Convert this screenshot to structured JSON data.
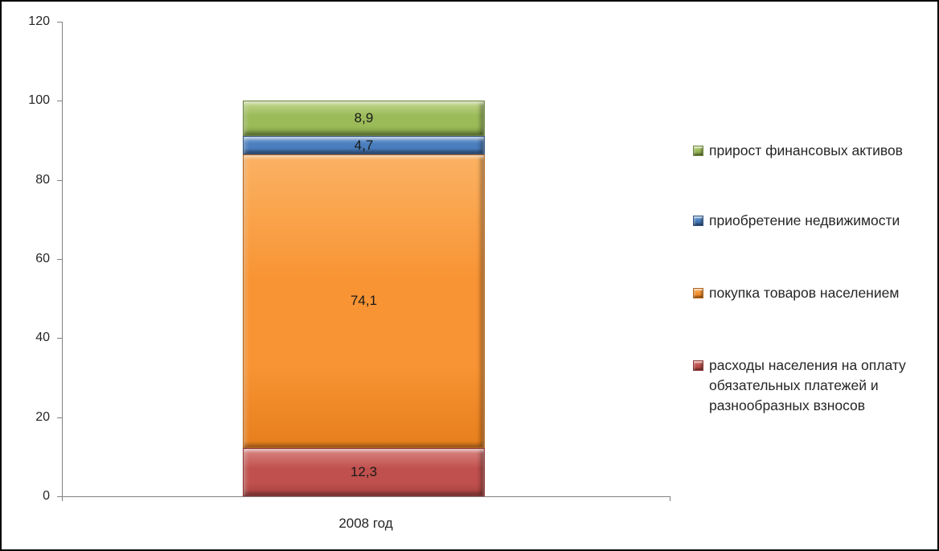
{
  "chart_data": {
    "type": "bar",
    "stacked": true,
    "title": "",
    "xlabel": "",
    "ylabel": "",
    "categories": [
      "2008 год"
    ],
    "series": [
      {
        "name": "расходы населения на оплату обязательных платежей и разнообразных взносов",
        "values": [
          12.3
        ],
        "data_label": "12,3",
        "legend_label": "расходы населения на оплату\nобязательных платежей и\nразнообразных взносов",
        "color": "#C0504D",
        "color_light": "#DA8683",
        "color_deep": "#A84441",
        "color_dark": "#8E3330"
      },
      {
        "name": "покупка товаров населением",
        "values": [
          74.1
        ],
        "data_label": "74,1",
        "legend_label": "покупка товаров населением",
        "color": "#F89434",
        "color_light": "#FBB263",
        "color_deep": "#E67E1C",
        "color_dark": "#B5641A"
      },
      {
        "name": "приобретение недвижимости",
        "values": [
          4.7
        ],
        "data_label": "4,7",
        "legend_label": "приобретение недвижимости",
        "color": "#4A7EBE",
        "color_light": "#7FA7D6",
        "color_deep": "#376199",
        "color_dark": "#2E5380"
      },
      {
        "name": "прирост финансовых активов",
        "values": [
          8.9
        ],
        "data_label": "8,9",
        "legend_label": "прирост финансовых активов",
        "color": "#9BBB59",
        "color_light": "#C4D88E",
        "color_deep": "#7E9C43",
        "color_dark": "#6B8639"
      }
    ],
    "ylim": [
      0,
      120
    ],
    "yticks": [
      0,
      20,
      40,
      60,
      80,
      100,
      120
    ],
    "grid": false,
    "legend_position": "right",
    "axis_color": "#808080",
    "text_color": "#262626"
  }
}
